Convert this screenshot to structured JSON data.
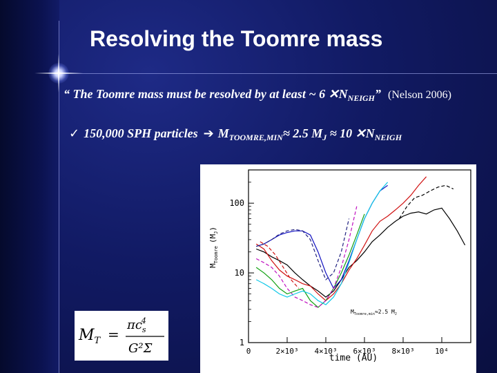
{
  "slide": {
    "title": "Resolving the Toomre mass",
    "quote": {
      "open": "“ The Toomre mass must be resolved by at least ~ 6 ",
      "times": "✕",
      "n": "N",
      "n_sub": "NEIGH",
      "close": "”",
      "citation": "(Nelson 2006)"
    },
    "bullet": {
      "check": "✓",
      "particles": "150,000 SPH particles",
      "arrow": "➔",
      "m": "M",
      "m_sub": "TOOMRE,MIN",
      "approx1": "≈ 2.5 M",
      "j_sub": "J",
      "approx2": " ≈ 10 ",
      "times": "✕",
      "n": "N",
      "n_sub": "NEIGH"
    },
    "formula": {
      "lhs": "M",
      "lhs_sub": "T",
      "equals": "=",
      "numerator": "πc",
      "num_sub": "s",
      "num_sup": "4",
      "denominator": "G²Σ"
    }
  },
  "chart_data": {
    "type": "line",
    "xlabel": "time (AU)",
    "ylabel": "M_Toomre (M_J)",
    "xlim": [
      0,
      11500
    ],
    "ylim": [
      1,
      300
    ],
    "y_scale": "log",
    "x_ticks": [
      {
        "value": 0,
        "label": "0"
      },
      {
        "value": 2000,
        "label": "2×10³"
      },
      {
        "value": 4000,
        "label": "4×10³"
      },
      {
        "value": 6000,
        "label": "6×10³"
      },
      {
        "value": 8000,
        "label": "8×10³"
      },
      {
        "value": 10000,
        "label": "10⁴"
      }
    ],
    "y_ticks": [
      {
        "value": 1,
        "label": "1"
      },
      {
        "value": 10,
        "label": "10"
      },
      {
        "value": 100,
        "label": "100"
      }
    ],
    "annotation": {
      "text": "M_Toomre,min≈2.5 M_J",
      "x": 4800,
      "y": 2.4
    },
    "colors": {
      "black": "#000000",
      "red": "#d01010",
      "green": "#10a010",
      "blue": "#1010c0",
      "magenta": "#c010c0",
      "cyan": "#10c8e8",
      "navy": "#202080"
    },
    "series": [
      {
        "color": "black",
        "dash": false,
        "x": [
          400,
          800,
          1200,
          1600,
          2000,
          2400,
          2800,
          3200,
          3600,
          4000,
          4400,
          4800,
          5200,
          5600,
          6000,
          6400,
          6800,
          7200,
          7600,
          8000,
          8400,
          8800,
          9200,
          9600,
          10000,
          10400,
          10800,
          11200
        ],
        "y": [
          22,
          20,
          17,
          15,
          13,
          10,
          8,
          6.5,
          5.5,
          4.5,
          5.5,
          8,
          12,
          15,
          20,
          28,
          35,
          45,
          55,
          65,
          72,
          75,
          70,
          80,
          85,
          60,
          40,
          25
        ]
      },
      {
        "color": "black",
        "dash": true,
        "x": [
          7800,
          8200,
          8600,
          9000,
          9400,
          9800,
          10200,
          10600
        ],
        "y": [
          60,
          90,
          120,
          130,
          150,
          170,
          180,
          160
        ]
      },
      {
        "color": "red",
        "dash": false,
        "x": [
          400,
          800,
          1200,
          1600,
          2000,
          2400,
          2800,
          3200,
          3600,
          4000,
          4400,
          4800,
          5200,
          5600,
          6000,
          6400,
          6800,
          7200,
          7600,
          8000,
          8400,
          8800,
          9200
        ],
        "y": [
          26,
          22,
          15,
          11,
          9,
          8,
          7,
          6.5,
          5,
          4,
          5,
          7,
          11,
          16,
          25,
          40,
          55,
          65,
          80,
          100,
          130,
          180,
          240
        ]
      },
      {
        "color": "red",
        "dash": true,
        "x": [
          600,
          1000,
          1400,
          1800,
          2200,
          2600
        ],
        "y": [
          28,
          24,
          18,
          12,
          8,
          6
        ]
      },
      {
        "color": "blue",
        "dash": false,
        "x": [
          400,
          800,
          1200,
          1600,
          2000,
          2400,
          2800,
          3200,
          3600,
          4000,
          4400,
          4800,
          5200,
          5600,
          6000,
          6400,
          6800,
          7200
        ],
        "y": [
          24,
          26,
          30,
          35,
          38,
          40,
          40,
          35,
          20,
          10,
          6,
          8,
          15,
          30,
          60,
          100,
          150,
          180
        ]
      },
      {
        "color": "green",
        "dash": false,
        "x": [
          400,
          800,
          1200,
          1600,
          2000,
          2400,
          2800,
          3200,
          3600,
          4000,
          4400,
          4800,
          5200,
          5600,
          6000
        ],
        "y": [
          12,
          10,
          8,
          6,
          5,
          5.5,
          6,
          4,
          3.2,
          4,
          6,
          10,
          18,
          35,
          70
        ]
      },
      {
        "color": "magenta",
        "dash": true,
        "x": [
          400,
          800,
          1200,
          1600,
          2000,
          2400,
          2800,
          3200,
          3600,
          4000,
          4400,
          4800,
          5200,
          5600
        ],
        "y": [
          16,
          14,
          12,
          9,
          6,
          4.5,
          4,
          3.5,
          3.2,
          4,
          6,
          12,
          30,
          90
        ]
      },
      {
        "color": "cyan",
        "dash": false,
        "x": [
          400,
          800,
          1200,
          1600,
          2000,
          2400,
          2800,
          3200,
          3600,
          4000,
          4400,
          4800,
          5200,
          5600,
          6000,
          6400,
          6800,
          7200
        ],
        "y": [
          8,
          7,
          6,
          5,
          4.5,
          5,
          5.5,
          5,
          4,
          3.5,
          4.5,
          7,
          14,
          30,
          60,
          100,
          150,
          200
        ]
      },
      {
        "color": "navy",
        "dash": true,
        "x": [
          400,
          800,
          1200,
          1600,
          2000,
          2400,
          2800,
          3200,
          3600,
          4000,
          4400,
          4800,
          5200
        ],
        "y": [
          24,
          26,
          30,
          36,
          40,
          42,
          40,
          30,
          15,
          8,
          10,
          20,
          60
        ]
      }
    ]
  }
}
